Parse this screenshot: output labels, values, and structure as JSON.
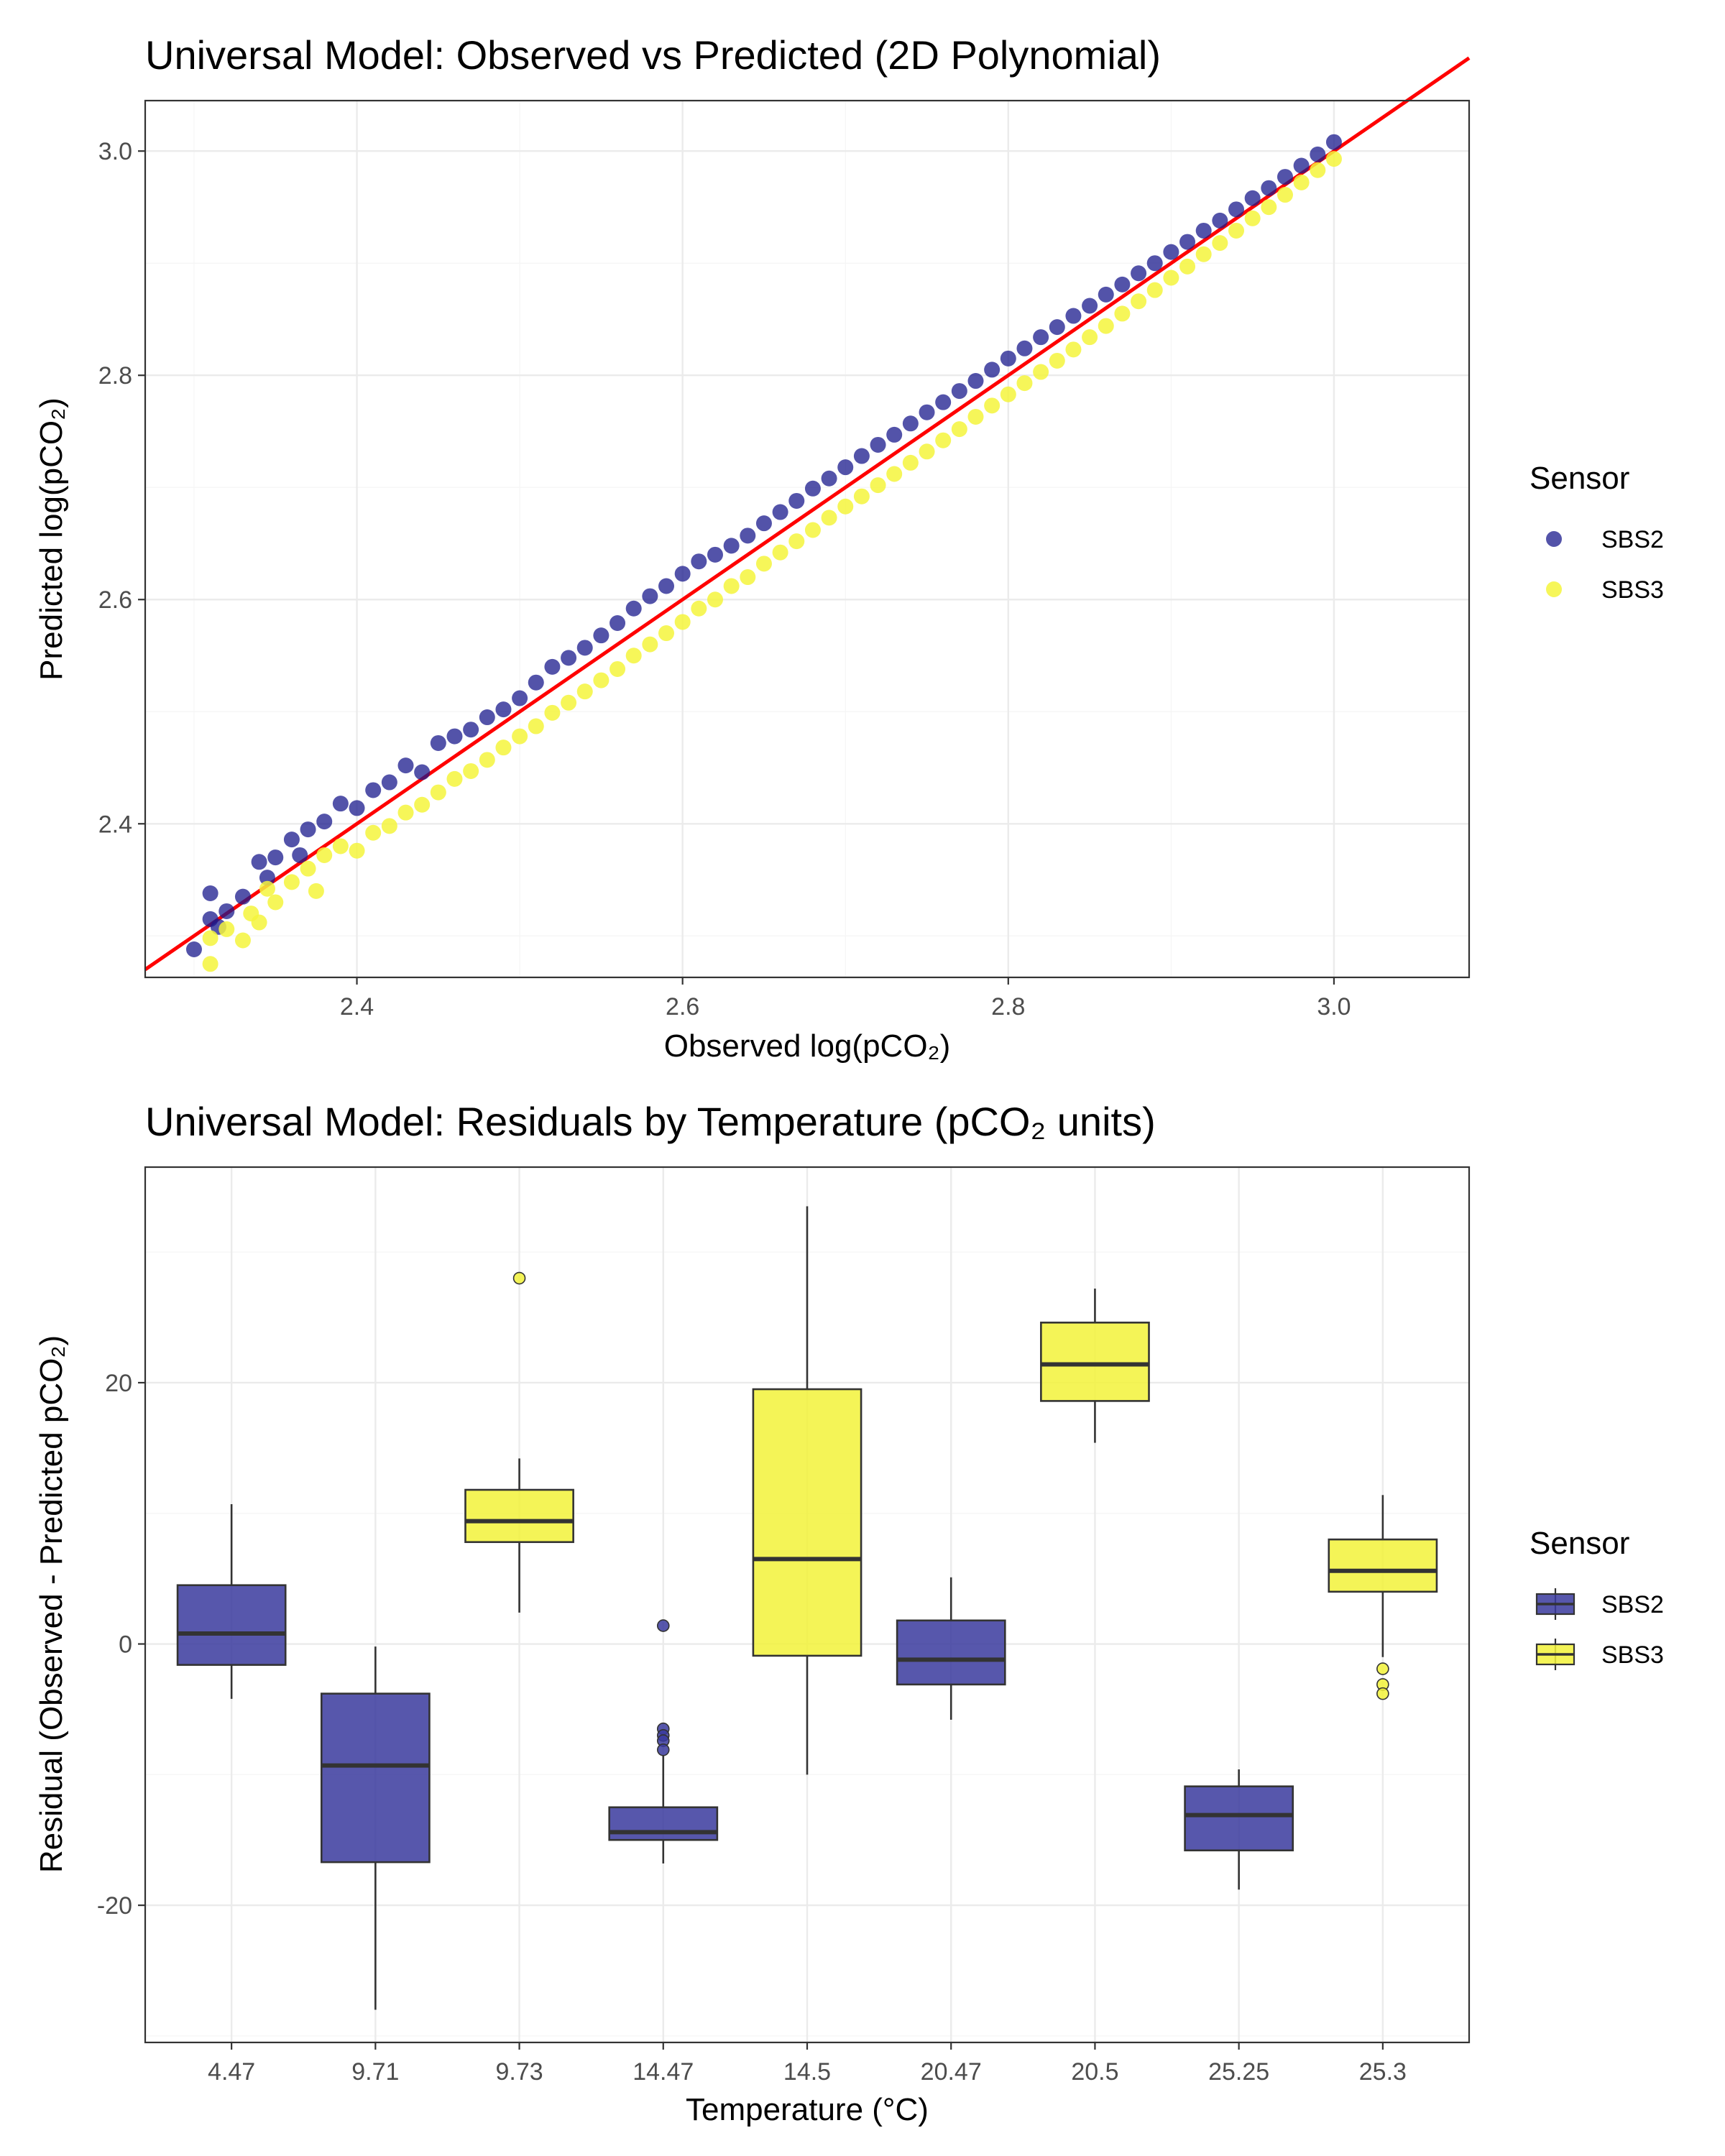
{
  "chart_data": [
    {
      "type": "scatter",
      "title": "Universal Model: Observed vs Predicted (2D Polynomial)",
      "xlabel": "Observed log(pCO₂)",
      "ylabel": "Predicted log(pCO₂)",
      "xlim": [
        2.27,
        3.083
      ],
      "ylim": [
        2.263,
        3.045
      ],
      "xticks": [
        "2.4",
        "2.6",
        "2.8",
        "3.0"
      ],
      "yticks": [
        "2.4",
        "2.6",
        "2.8",
        "3.0"
      ],
      "grid": true,
      "legend": {
        "title": "Sensor",
        "position": "right",
        "entries": [
          "SBS2",
          "SBS3"
        ]
      },
      "reference_line": {
        "label": "1:1",
        "color": "#ff0000",
        "x": [
          2.27,
          3.083
        ],
        "y": [
          2.27,
          3.083
        ]
      },
      "series": [
        {
          "name": "SBS2",
          "color": "#1a1a8c",
          "points": [
            [
              2.3,
              2.288
            ],
            [
              2.31,
              2.315
            ],
            [
              2.31,
              2.338
            ],
            [
              2.315,
              2.308
            ],
            [
              2.32,
              2.322
            ],
            [
              2.33,
              2.335
            ],
            [
              2.34,
              2.366
            ],
            [
              2.345,
              2.352
            ],
            [
              2.35,
              2.37
            ],
            [
              2.36,
              2.386
            ],
            [
              2.365,
              2.372
            ],
            [
              2.37,
              2.395
            ],
            [
              2.38,
              2.402
            ],
            [
              2.39,
              2.418
            ],
            [
              2.4,
              2.414
            ],
            [
              2.41,
              2.43
            ],
            [
              2.42,
              2.437
            ],
            [
              2.43,
              2.452
            ],
            [
              2.44,
              2.446
            ],
            [
              2.45,
              2.472
            ],
            [
              2.46,
              2.478
            ],
            [
              2.47,
              2.484
            ],
            [
              2.48,
              2.495
            ],
            [
              2.49,
              2.502
            ],
            [
              2.5,
              2.512
            ],
            [
              2.51,
              2.526
            ],
            [
              2.52,
              2.54
            ],
            [
              2.53,
              2.548
            ],
            [
              2.54,
              2.557
            ],
            [
              2.55,
              2.568
            ],
            [
              2.56,
              2.579
            ],
            [
              2.57,
              2.592
            ],
            [
              2.58,
              2.603
            ],
            [
              2.59,
              2.612
            ],
            [
              2.6,
              2.623
            ],
            [
              2.61,
              2.634
            ],
            [
              2.62,
              2.64
            ],
            [
              2.63,
              2.648
            ],
            [
              2.64,
              2.657
            ],
            [
              2.65,
              2.668
            ],
            [
              2.66,
              2.678
            ],
            [
              2.67,
              2.688
            ],
            [
              2.68,
              2.699
            ],
            [
              2.69,
              2.708
            ],
            [
              2.7,
              2.718
            ],
            [
              2.71,
              2.728
            ],
            [
              2.72,
              2.738
            ],
            [
              2.73,
              2.747
            ],
            [
              2.74,
              2.757
            ],
            [
              2.75,
              2.767
            ],
            [
              2.76,
              2.776
            ],
            [
              2.77,
              2.786
            ],
            [
              2.78,
              2.795
            ],
            [
              2.79,
              2.805
            ],
            [
              2.8,
              2.815
            ],
            [
              2.81,
              2.824
            ],
            [
              2.82,
              2.834
            ],
            [
              2.83,
              2.843
            ],
            [
              2.84,
              2.853
            ],
            [
              2.85,
              2.862
            ],
            [
              2.86,
              2.872
            ],
            [
              2.87,
              2.881
            ],
            [
              2.88,
              2.891
            ],
            [
              2.89,
              2.9
            ],
            [
              2.9,
              2.91
            ],
            [
              2.91,
              2.919
            ],
            [
              2.92,
              2.929
            ],
            [
              2.93,
              2.938
            ],
            [
              2.94,
              2.948
            ],
            [
              2.95,
              2.958
            ],
            [
              2.96,
              2.967
            ],
            [
              2.97,
              2.977
            ],
            [
              2.98,
              2.987
            ],
            [
              2.99,
              2.997
            ],
            [
              3.0,
              3.008
            ]
          ]
        },
        {
          "name": "SBS3",
          "color": "#f5f53c",
          "points": [
            [
              2.31,
              2.275
            ],
            [
              2.31,
              2.298
            ],
            [
              2.32,
              2.306
            ],
            [
              2.33,
              2.296
            ],
            [
              2.335,
              2.32
            ],
            [
              2.34,
              2.312
            ],
            [
              2.345,
              2.342
            ],
            [
              2.35,
              2.33
            ],
            [
              2.36,
              2.348
            ],
            [
              2.37,
              2.36
            ],
            [
              2.375,
              2.34
            ],
            [
              2.38,
              2.372
            ],
            [
              2.39,
              2.38
            ],
            [
              2.4,
              2.376
            ],
            [
              2.41,
              2.392
            ],
            [
              2.42,
              2.398
            ],
            [
              2.43,
              2.41
            ],
            [
              2.44,
              2.417
            ],
            [
              2.45,
              2.428
            ],
            [
              2.46,
              2.44
            ],
            [
              2.47,
              2.447
            ],
            [
              2.48,
              2.457
            ],
            [
              2.49,
              2.468
            ],
            [
              2.5,
              2.478
            ],
            [
              2.51,
              2.487
            ],
            [
              2.52,
              2.499
            ],
            [
              2.53,
              2.508
            ],
            [
              2.54,
              2.518
            ],
            [
              2.55,
              2.528
            ],
            [
              2.56,
              2.538
            ],
            [
              2.57,
              2.55
            ],
            [
              2.58,
              2.56
            ],
            [
              2.59,
              2.57
            ],
            [
              2.6,
              2.58
            ],
            [
              2.61,
              2.592
            ],
            [
              2.62,
              2.6
            ],
            [
              2.63,
              2.612
            ],
            [
              2.64,
              2.62
            ],
            [
              2.65,
              2.632
            ],
            [
              2.66,
              2.642
            ],
            [
              2.67,
              2.652
            ],
            [
              2.68,
              2.662
            ],
            [
              2.69,
              2.673
            ],
            [
              2.7,
              2.683
            ],
            [
              2.71,
              2.692
            ],
            [
              2.72,
              2.702
            ],
            [
              2.73,
              2.712
            ],
            [
              2.74,
              2.722
            ],
            [
              2.75,
              2.732
            ],
            [
              2.76,
              2.742
            ],
            [
              2.77,
              2.752
            ],
            [
              2.78,
              2.763
            ],
            [
              2.79,
              2.773
            ],
            [
              2.8,
              2.783
            ],
            [
              2.81,
              2.793
            ],
            [
              2.82,
              2.803
            ],
            [
              2.83,
              2.813
            ],
            [
              2.84,
              2.823
            ],
            [
              2.85,
              2.834
            ],
            [
              2.86,
              2.844
            ],
            [
              2.87,
              2.855
            ],
            [
              2.88,
              2.866
            ],
            [
              2.89,
              2.876
            ],
            [
              2.9,
              2.887
            ],
            [
              2.91,
              2.897
            ],
            [
              2.92,
              2.908
            ],
            [
              2.93,
              2.918
            ],
            [
              2.94,
              2.929
            ],
            [
              2.95,
              2.94
            ],
            [
              2.96,
              2.95
            ],
            [
              2.97,
              2.961
            ],
            [
              2.98,
              2.972
            ],
            [
              2.99,
              2.983
            ],
            [
              3.0,
              2.993
            ]
          ]
        }
      ]
    },
    {
      "type": "box",
      "title": "Universal Model: Residuals by Temperature (pCO₂ units)",
      "xlabel": "Temperature (°C)",
      "ylabel": "Residual (Observed - Predicted pCO₂)",
      "ylim": [
        -30.5,
        36.5
      ],
      "yticks": [
        "-20",
        "0",
        "20"
      ],
      "categories": [
        "4.47",
        "9.71",
        "9.73",
        "14.47",
        "14.5",
        "20.47",
        "20.5",
        "25.25",
        "25.3"
      ],
      "grid": true,
      "legend": {
        "title": "Sensor",
        "position": "right",
        "entries": [
          "SBS2",
          "SBS3"
        ]
      },
      "series_colors": {
        "SBS2": "#3a3a9e",
        "SBS3": "#f2f23a"
      },
      "boxes": [
        {
          "category": "4.47",
          "sensor": "SBS2",
          "min": -4.2,
          "q1": -1.6,
          "median": 0.8,
          "q3": 4.5,
          "max": 10.7,
          "outliers": []
        },
        {
          "category": "9.71",
          "sensor": "SBS2",
          "min": -28.0,
          "q1": -16.7,
          "median": -9.3,
          "q3": -3.8,
          "max": -0.2,
          "outliers": []
        },
        {
          "category": "9.73",
          "sensor": "SBS3",
          "min": 2.4,
          "q1": 7.8,
          "median": 9.4,
          "q3": 11.8,
          "max": 14.2,
          "outliers": [
            28.0
          ]
        },
        {
          "category": "14.47",
          "sensor": "SBS2",
          "min": -16.8,
          "q1": -15.0,
          "median": -14.4,
          "q3": -12.5,
          "max": -8.5,
          "outliers": [
            1.4,
            -6.5,
            -7.0,
            -7.4,
            -8.1
          ]
        },
        {
          "category": "14.5",
          "sensor": "SBS3",
          "min": -10.0,
          "q1": -0.9,
          "median": 6.5,
          "q3": 19.5,
          "max": 33.5,
          "outliers": []
        },
        {
          "category": "20.47",
          "sensor": "SBS2",
          "min": -5.8,
          "q1": -3.1,
          "median": -1.2,
          "q3": 1.8,
          "max": 5.1,
          "outliers": []
        },
        {
          "category": "20.5",
          "sensor": "SBS3",
          "min": 15.4,
          "q1": 18.6,
          "median": 21.4,
          "q3": 24.6,
          "max": 27.2,
          "outliers": []
        },
        {
          "category": "25.25",
          "sensor": "SBS2",
          "min": -18.8,
          "q1": -15.8,
          "median": -13.1,
          "q3": -10.9,
          "max": -9.6,
          "outliers": []
        },
        {
          "category": "25.3",
          "sensor": "SBS3",
          "min": -1.0,
          "q1": 4.0,
          "median": 5.6,
          "q3": 8.0,
          "max": 11.4,
          "outliers": [
            -1.9,
            -3.1,
            -3.8
          ]
        }
      ]
    }
  ]
}
